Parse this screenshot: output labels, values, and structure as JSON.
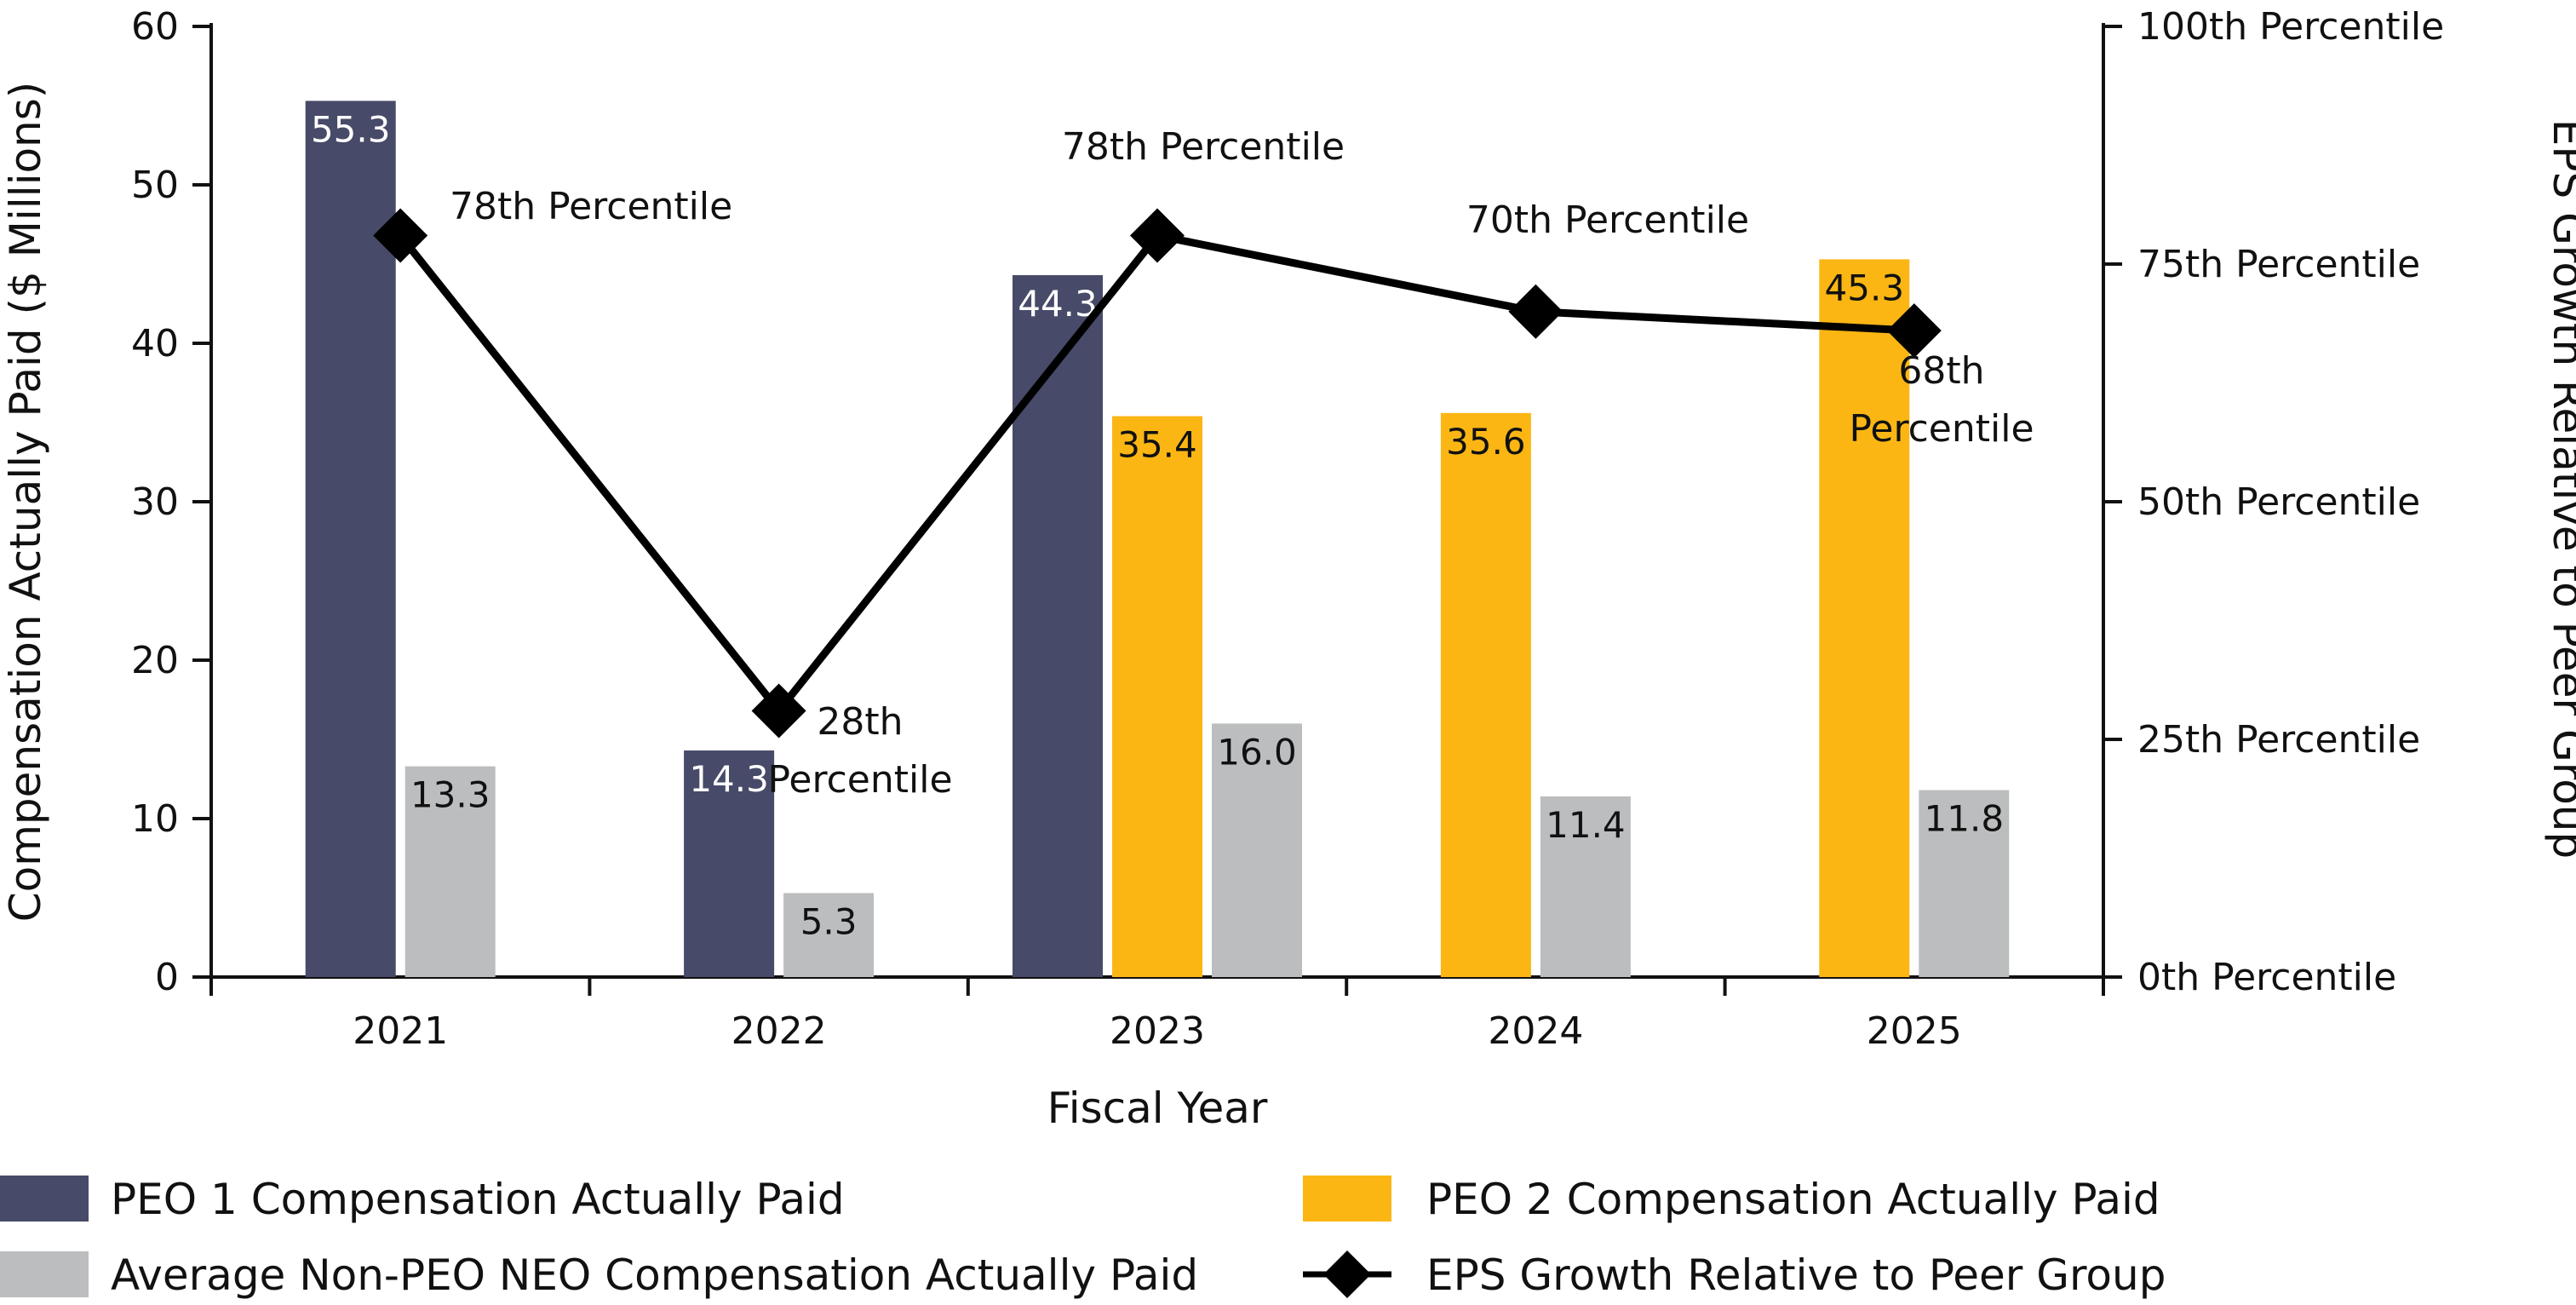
{
  "chart_data": {
    "type": "bar",
    "categories": [
      "2021",
      "2022",
      "2023",
      "2024",
      "2025"
    ],
    "series": [
      {
        "name": "PEO 1 Compensation Actually Paid",
        "color": "#474a68",
        "label_color": "#ffffff",
        "values": [
          55.3,
          14.3,
          44.3,
          null,
          null
        ]
      },
      {
        "name": "PEO 2 Compensation Actually Paid",
        "color": "#fbb614",
        "label_color": "#111111",
        "values": [
          null,
          null,
          35.4,
          35.6,
          45.3
        ]
      },
      {
        "name": "Average Non-PEO NEO Compensation Actually Paid",
        "color": "#bcbdbf",
        "label_color": "#111111",
        "values": [
          13.3,
          5.3,
          16.0,
          11.4,
          11.8
        ]
      }
    ],
    "line_series": {
      "name": "EPS Growth Relative to Peer Group",
      "color": "#000000",
      "values": [
        78,
        28,
        78,
        70,
        68
      ],
      "annotations": [
        [
          "78th Percentile"
        ],
        [
          "28th",
          "Percentile"
        ],
        [
          "78th Percentile"
        ],
        [
          "70th Percentile"
        ],
        [
          "68th",
          "Percentile"
        ]
      ]
    },
    "xlabel": "Fiscal Year",
    "ylabel": "Compensation Actually Paid ($ Millions)",
    "y2label": "EPS Growth Relative to Peer Group",
    "ylim": [
      0,
      60
    ],
    "y_ticks": [
      "0",
      "10",
      "20",
      "30",
      "40",
      "50",
      "60"
    ],
    "y2lim": [
      0,
      100
    ],
    "y2_ticks": [
      "0th Percentile",
      "25th Percentile",
      "50th Percentile",
      "75th Percentile",
      "100th Percentile"
    ],
    "legend": [
      {
        "label": "PEO 1 Compensation Actually Paid",
        "type": "bar",
        "color": "#474a68"
      },
      {
        "label": "PEO 2 Compensation Actually Paid",
        "type": "bar",
        "color": "#fbb614"
      },
      {
        "label": "Average Non-PEO NEO Compensation Actually Paid",
        "type": "bar",
        "color": "#bcbdbf"
      },
      {
        "label": "EPS Growth Relative to Peer Group",
        "type": "line-marker",
        "color": "#000000"
      }
    ],
    "legend_position": "bottom",
    "grid": false
  }
}
